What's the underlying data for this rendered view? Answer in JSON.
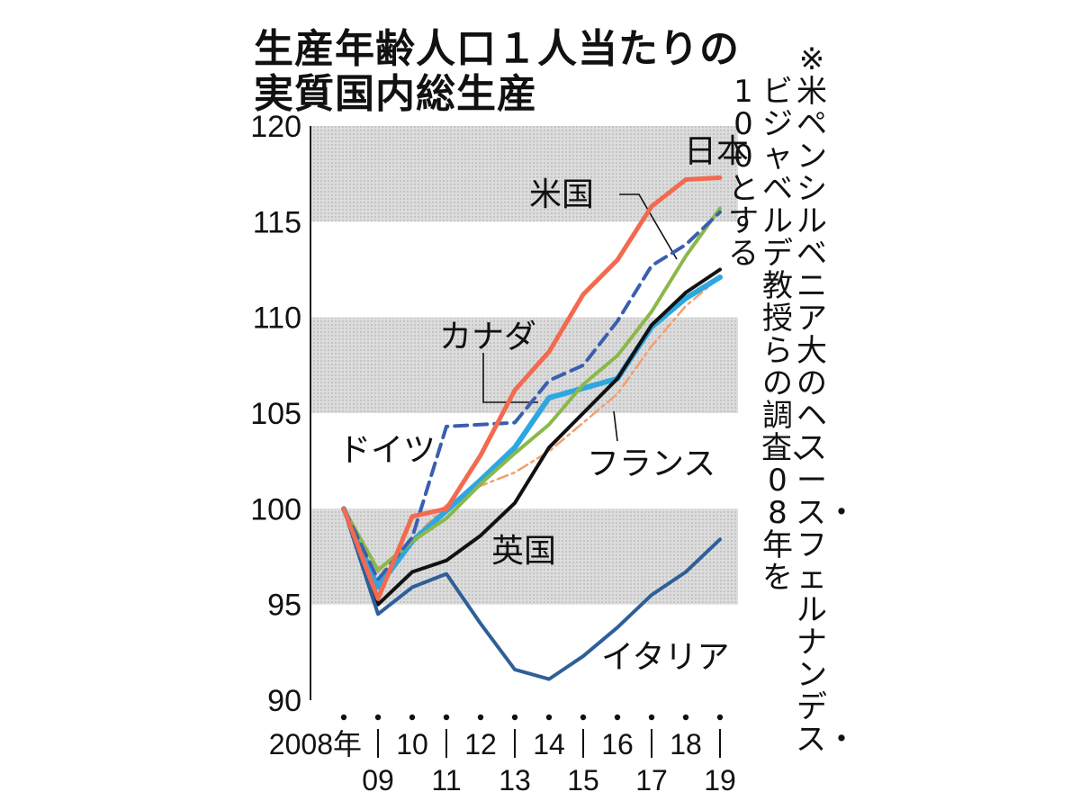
{
  "title_line1": "生産年齢人口１人当たりの",
  "title_line2": "実質国内総生産",
  "note_lines": [
    "※米ペンシルベニア大のヘスース・フェルナンデス・",
    "ビジャベルデ教授らの調査、08年を",
    "100とする"
  ],
  "chart_data": {
    "type": "line",
    "title": "生産年齢人口１人当たりの実質国内総生産",
    "ylim": [
      90,
      120
    ],
    "y_ticks": [
      "120",
      "115",
      "110",
      "105",
      "100",
      "95",
      "90"
    ],
    "x_ticks_upper": [
      "2008年",
      "10",
      "12",
      "14",
      "16",
      "18"
    ],
    "x_ticks_lower": [
      "09",
      "11",
      "13",
      "15",
      "17",
      "19"
    ],
    "grid": "shaded bands 95–100, 105–110, 115–120",
    "x": [
      2008,
      2009,
      2010,
      2011,
      2012,
      2013,
      2014,
      2015,
      2016,
      2017,
      2018,
      2019
    ],
    "series": [
      {
        "name": "日本",
        "color": "#f26a4f",
        "values": [
          100,
          95.3,
          99.6,
          100.0,
          102.8,
          106.2,
          108.2,
          111.2,
          113.0,
          115.8,
          117.2,
          117.3
        ]
      },
      {
        "name": "米国",
        "color": "#3a5fb0",
        "values": [
          100,
          96.3,
          98.5,
          104.3,
          104.4,
          104.5,
          106.7,
          107.5,
          109.8,
          112.7,
          113.8,
          115.5
        ]
      },
      {
        "name": "カナダ",
        "color": "#2ea7e0",
        "values": [
          100,
          95.9,
          98.3,
          99.9,
          101.5,
          103.2,
          105.8,
          106.3,
          106.8,
          109.5,
          111.0,
          112.1
        ]
      },
      {
        "name": "ドイツ",
        "color": "#8ab84a",
        "values": [
          100,
          96.8,
          98.3,
          99.5,
          101.3,
          102.9,
          104.4,
          106.5,
          108.0,
          110.3,
          113.2,
          115.7
        ]
      },
      {
        "name": "フランス",
        "color": "#f0a070",
        "values": [
          100,
          96.7,
          98.4,
          100.2,
          101.2,
          101.9,
          103.0,
          104.5,
          106.0,
          108.5,
          110.6,
          112.1
        ]
      },
      {
        "name": "英国",
        "color": "#111111",
        "values": [
          100,
          95.0,
          96.7,
          97.3,
          98.6,
          100.3,
          103.2,
          105.0,
          106.8,
          109.6,
          111.3,
          112.5
        ]
      },
      {
        "name": "イタリア",
        "color": "#2f5f99",
        "values": [
          100,
          94.5,
          95.9,
          96.6,
          94.0,
          91.6,
          91.1,
          92.3,
          93.8,
          95.5,
          96.7,
          98.4
        ]
      }
    ]
  }
}
